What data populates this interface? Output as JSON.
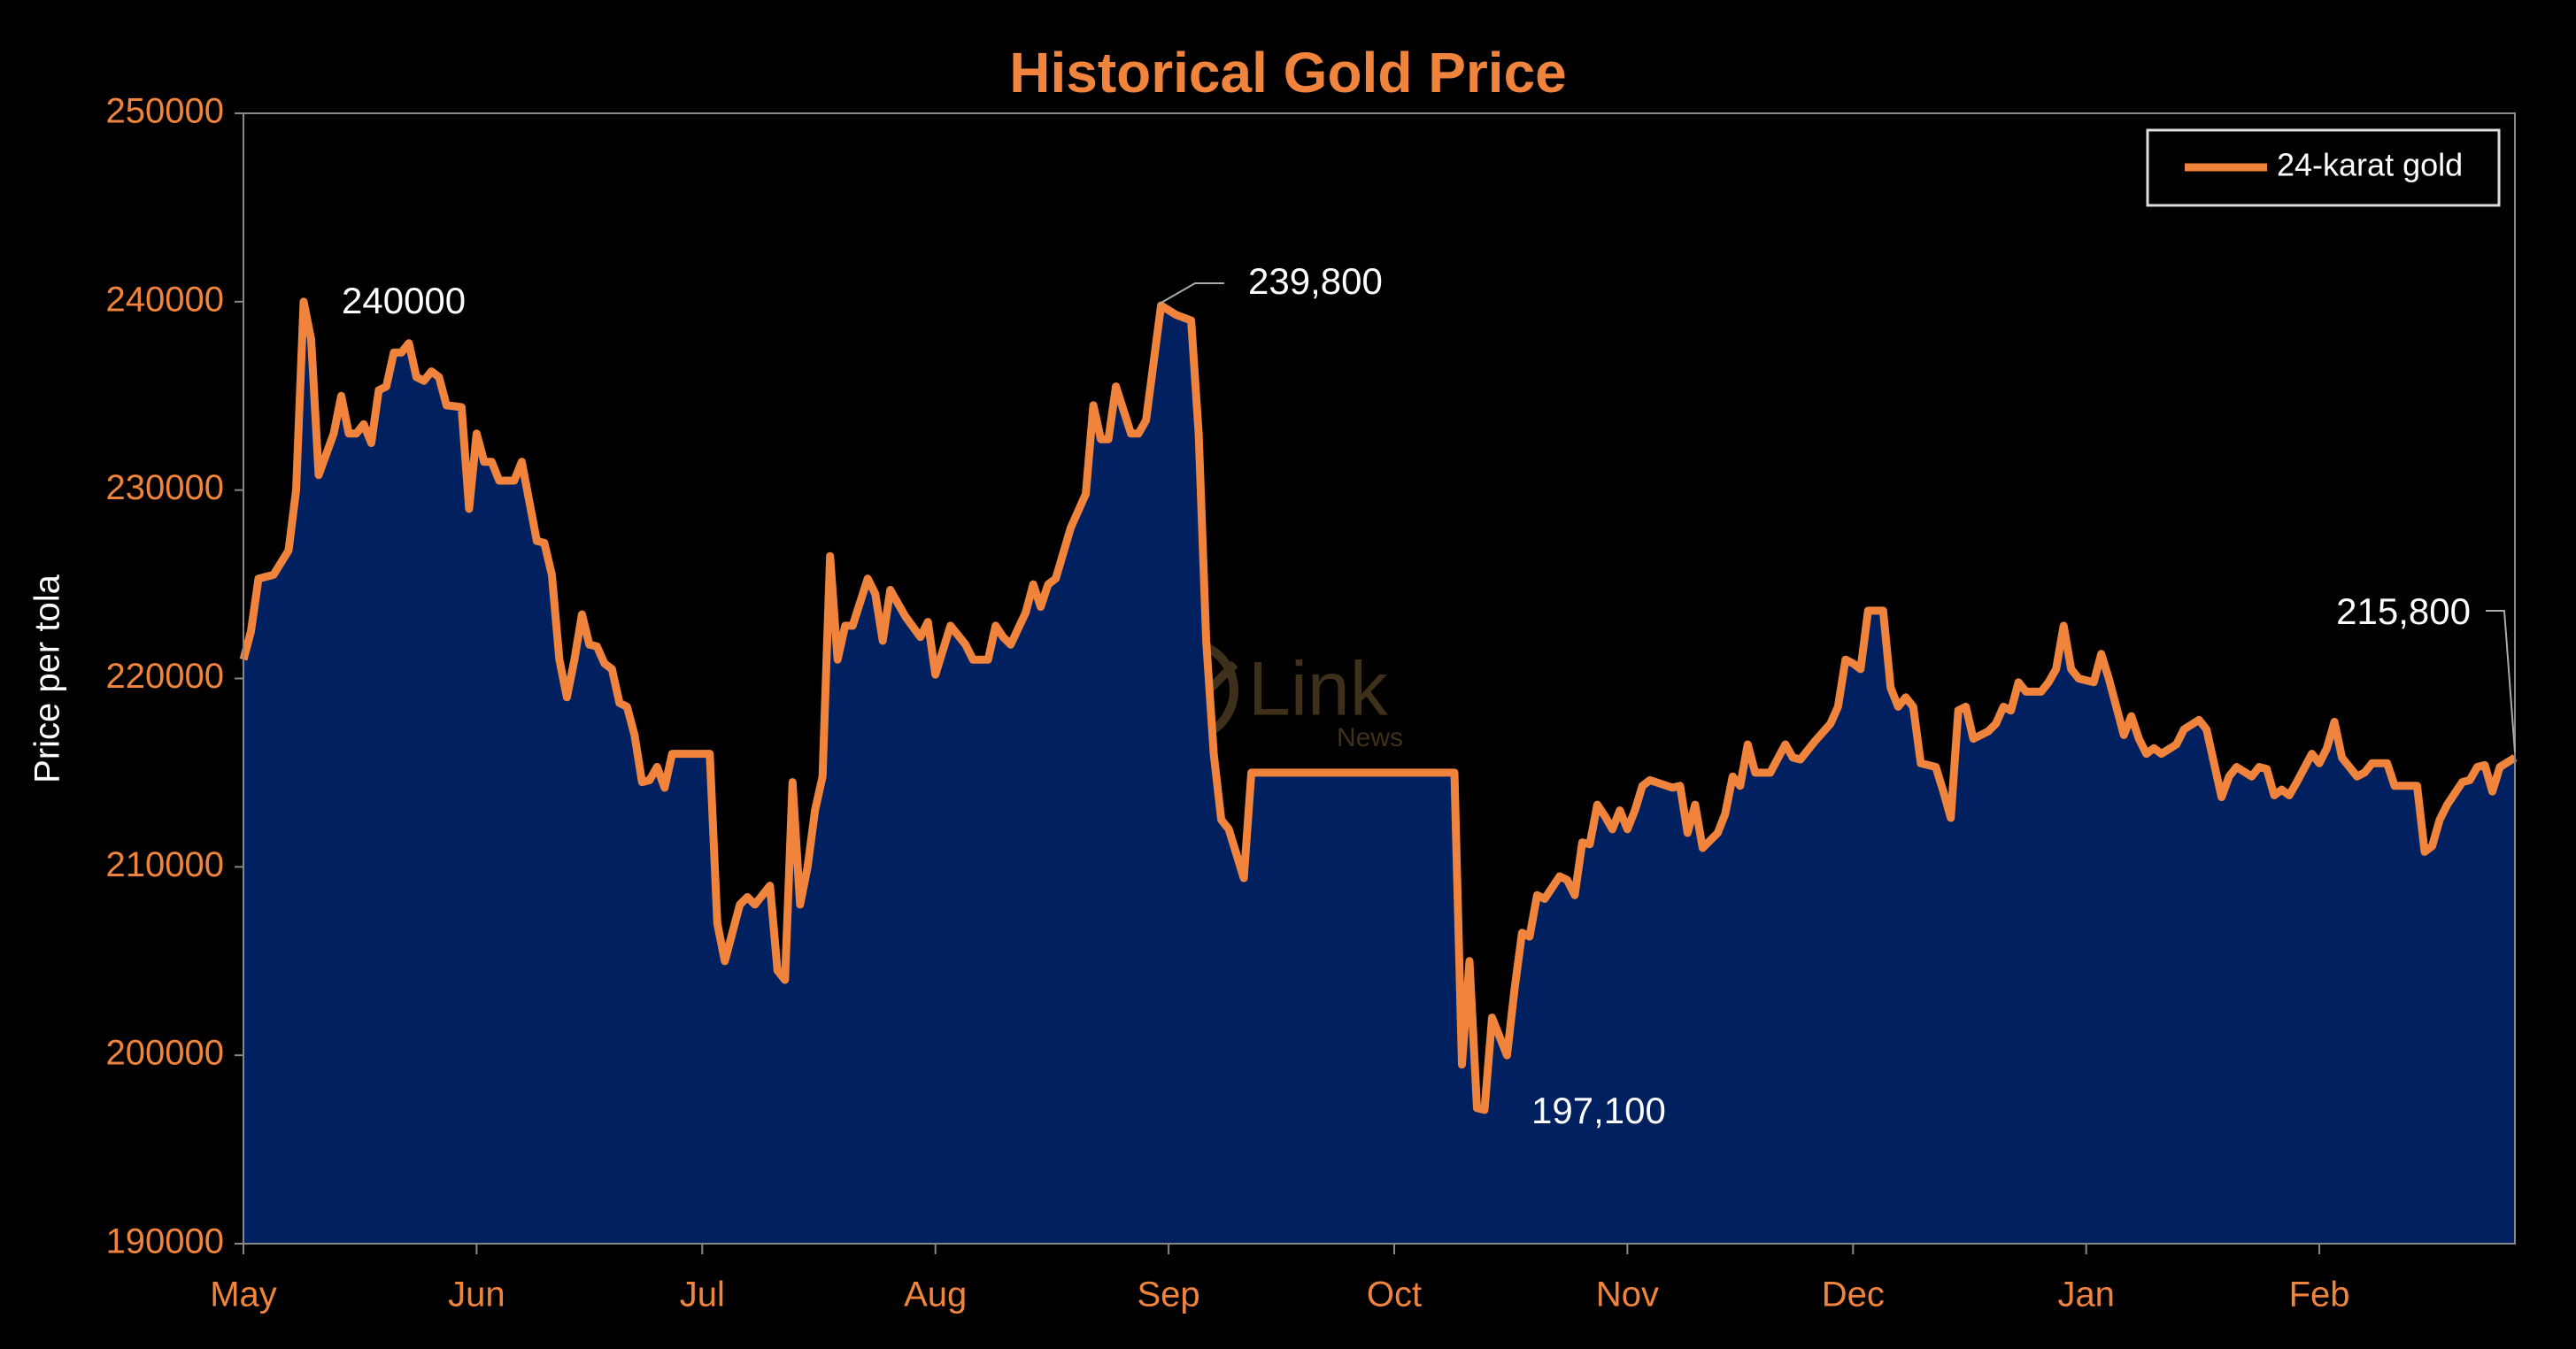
{
  "chart_data": {
    "type": "area",
    "title": "Historical Gold Price",
    "ylabel": "Price per tola",
    "xlim": [
      0,
      302
    ],
    "xticks": [
      {
        "value": 0,
        "label": "May"
      },
      {
        "value": 31,
        "label": "Jun"
      },
      {
        "value": 61,
        "label": "Jul"
      },
      {
        "value": 92,
        "label": "Aug"
      },
      {
        "value": 123,
        "label": "Sep"
      },
      {
        "value": 153,
        "label": "Oct"
      },
      {
        "value": 184,
        "label": "Nov"
      },
      {
        "value": 214,
        "label": "Dec"
      },
      {
        "value": 245,
        "label": "Jan"
      },
      {
        "value": 276,
        "label": "Feb"
      }
    ],
    "ylim": [
      190000,
      250000
    ],
    "yticks": [
      190000,
      200000,
      210000,
      220000,
      230000,
      240000,
      250000
    ],
    "legend": "upper right",
    "x": [
      0,
      1,
      2,
      4,
      6,
      7,
      8,
      9,
      10,
      12,
      13,
      14,
      15,
      16,
      17,
      18,
      19,
      20,
      21,
      22,
      23,
      24,
      25,
      26,
      27,
      29,
      30,
      31,
      32,
      33,
      34,
      36,
      37,
      39,
      40,
      41,
      42,
      43,
      44,
      45,
      46,
      47,
      48,
      49,
      50,
      51,
      52,
      53,
      54,
      55,
      56,
      57,
      62,
      63,
      64,
      66,
      67,
      68,
      69,
      70,
      71,
      72,
      73,
      74,
      75,
      76,
      77,
      78,
      79,
      80,
      81,
      83,
      84,
      85,
      86,
      88,
      90,
      91,
      92,
      94,
      96,
      97,
      99,
      100,
      101,
      102,
      104,
      105,
      106,
      107,
      108,
      110,
      112,
      113,
      114,
      115,
      116,
      118,
      119,
      120,
      122,
      124,
      126,
      127,
      128,
      129,
      130,
      131,
      133,
      134,
      161,
      162,
      163,
      164,
      165,
      166,
      168,
      169,
      170,
      171,
      172,
      173,
      175,
      176,
      177,
      178,
      179,
      180,
      181,
      182,
      183,
      184,
      185,
      186,
      187,
      190,
      191,
      192,
      193,
      194,
      196,
      197,
      198,
      199,
      200,
      201,
      203,
      205,
      206,
      207,
      209,
      211,
      212,
      213,
      214,
      215,
      216,
      218,
      219,
      220,
      221,
      222,
      223,
      225,
      226,
      227,
      228,
      229,
      230,
      232,
      233,
      234,
      235,
      236,
      237,
      239,
      240,
      241,
      242,
      243,
      244,
      246,
      247,
      248,
      250,
      251,
      252,
      253,
      254,
      255,
      257,
      258,
      260,
      261,
      262,
      263,
      264,
      265,
      267,
      268,
      269,
      270,
      271,
      272,
      273,
      275,
      276,
      277,
      278,
      279,
      281,
      282,
      283,
      285,
      286,
      289,
      290,
      291,
      292,
      293,
      295,
      296,
      297,
      298,
      299,
      300,
      302
    ],
    "series": [
      {
        "name": "24-karat gold",
        "color": "#f0843c",
        "fill": "#002060",
        "values": [
          221000,
          222500,
          225300,
          225500,
          226800,
          230000,
          240000,
          238000,
          230800,
          233000,
          235000,
          233000,
          233000,
          233500,
          232500,
          235300,
          235500,
          237300,
          237300,
          237800,
          236000,
          235800,
          236300,
          236000,
          234500,
          234400,
          229000,
          233000,
          231500,
          231500,
          230500,
          230500,
          231500,
          227300,
          227200,
          225500,
          221000,
          219000,
          221000,
          223400,
          221800,
          221700,
          220800,
          220500,
          218700,
          218500,
          217000,
          214500,
          214600,
          215300,
          214200,
          216000,
          216000,
          207000,
          205000,
          208000,
          208400,
          208000,
          208500,
          209000,
          204500,
          204000,
          214500,
          208000,
          210000,
          213000,
          214800,
          226500,
          221000,
          222800,
          222800,
          225300,
          224500,
          222000,
          224700,
          223300,
          222200,
          223000,
          220200,
          222800,
          221800,
          221000,
          221000,
          222800,
          222200,
          221800,
          223500,
          225000,
          223800,
          225000,
          225300,
          228000,
          229800,
          234500,
          232700,
          232700,
          235500,
          233000,
          233000,
          233700,
          239800,
          239300,
          239000,
          233000,
          222000,
          216000,
          212500,
          212000,
          209400,
          215000,
          215000,
          199500,
          205000,
          197200,
          197100,
          202000,
          200000,
          203500,
          206500,
          206300,
          208500,
          208300,
          209500,
          209300,
          208500,
          211300,
          211200,
          213300,
          212700,
          212000,
          213000,
          212000,
          213000,
          214300,
          214600,
          214200,
          214300,
          211800,
          213300,
          211000,
          211800,
          212800,
          214800,
          214300,
          216500,
          215000,
          215000,
          216500,
          215800,
          215700,
          216700,
          217600,
          218500,
          221000,
          220800,
          220500,
          223600,
          223600,
          219500,
          218500,
          219000,
          218500,
          215500,
          215300,
          214000,
          212600,
          218300,
          218500,
          216800,
          217200,
          217600,
          218500,
          218300,
          219800,
          219300,
          219300,
          219800,
          220500,
          222800,
          220500,
          220000,
          219800,
          221300,
          220000,
          217000,
          218000,
          216800,
          216000,
          216300,
          216000,
          216500,
          217300,
          217800,
          217300,
          215500,
          213700,
          214800,
          215300,
          214800,
          215300,
          215200,
          213800,
          214100,
          213800,
          214500,
          216000,
          215500,
          216300,
          217700,
          215800,
          214800,
          215000,
          215500,
          215500,
          214300,
          214300,
          210800,
          211100,
          212500,
          213300,
          214500,
          214600,
          215300,
          215400,
          214000,
          215300,
          215800
        ]
      }
    ],
    "annotations": [
      "240000",
      "239,800",
      "197,100",
      "215,800"
    ],
    "watermark": {
      "text": "Link",
      "subtext": "News"
    }
  }
}
